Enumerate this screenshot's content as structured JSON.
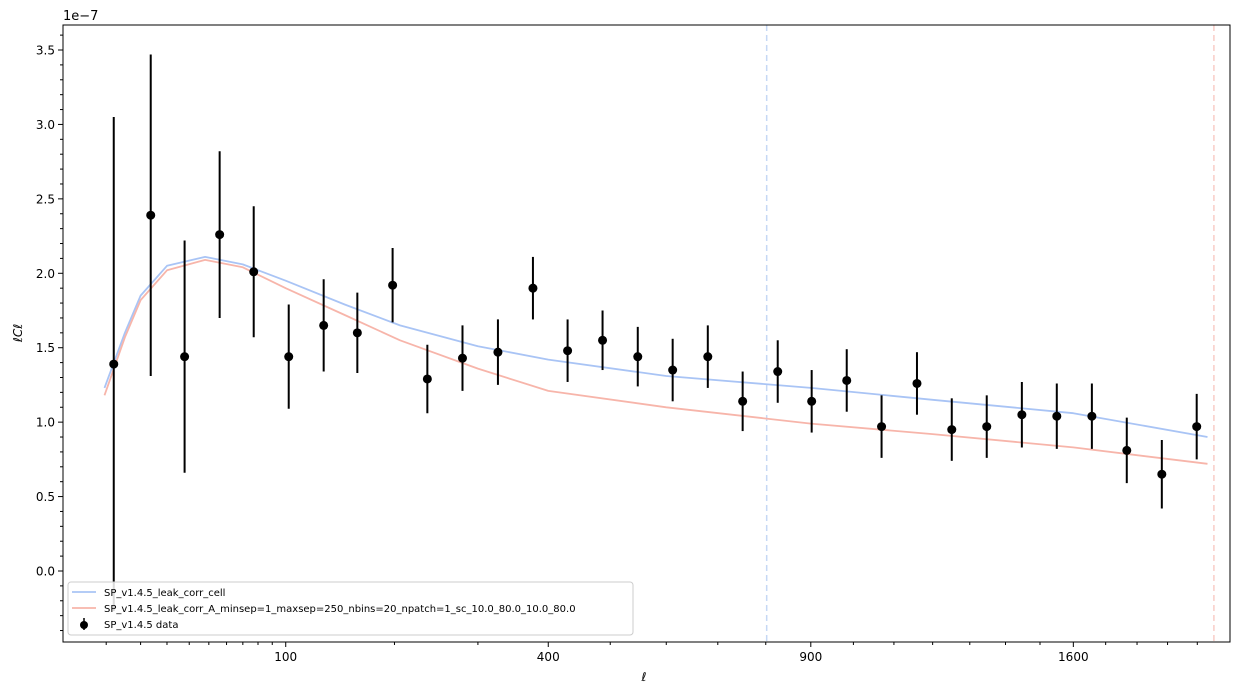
{
  "chart_data": {
    "type": "scatter",
    "title": "",
    "xlabel": "ℓ",
    "ylabel": "ℓCℓ",
    "x_scale": "sqrt",
    "y_offset_text": "1e−7",
    "y_multiplier": 1e-07,
    "xlim": [
      2.3,
      2113
    ],
    "ylim": [
      -0.477,
      3.668
    ],
    "x_ticks": [
      100,
      400,
      900,
      1600
    ],
    "x_tick_labels": [
      "100",
      "400",
      "900",
      "1600"
    ],
    "x_minor_ticks": [
      10,
      20,
      30,
      40,
      50,
      60,
      70,
      80,
      90,
      200,
      300,
      500,
      600,
      700,
      800,
      1000,
      1100,
      1200,
      1300,
      1400,
      1500,
      1700,
      1800,
      1900,
      2000
    ],
    "y_ticks": [
      0.0,
      0.5,
      1.0,
      1.5,
      2.0,
      2.5,
      3.0,
      3.5
    ],
    "y_tick_labels": [
      "0.0",
      "0.5",
      "1.0",
      "1.5",
      "2.0",
      "2.5",
      "3.0",
      "3.5"
    ],
    "vlines": [
      {
        "x": 802,
        "color": "#c5d8f5"
      },
      {
        "x": 2057,
        "color": "#f9cdc7"
      }
    ],
    "legend_position": "lower-left",
    "series": [
      {
        "name": "SP_v1.4.5_leak_corr_cell",
        "kind": "line",
        "color": "#a9c4f5",
        "x": [
          9.6,
          15,
          20,
          30,
          48,
          70,
          100,
          150,
          206,
          300,
          400,
          600,
          900,
          1200,
          1600,
          2035
        ],
        "y": [
          1.23,
          1.6,
          1.85,
          2.05,
          2.11,
          2.06,
          1.95,
          1.79,
          1.65,
          1.51,
          1.42,
          1.31,
          1.23,
          1.15,
          1.06,
          0.9
        ]
      },
      {
        "name": "SP_v1.4.5_leak_corr_A_minsep=1_maxsep=250_nbins=20_npatch=1_sc_10.0_80.0_10.0_80.0",
        "kind": "line",
        "color": "#f7b5aa",
        "x": [
          9.6,
          15,
          20,
          30,
          48,
          70,
          100,
          150,
          206,
          300,
          400,
          600,
          900,
          1200,
          1600,
          2035
        ],
        "y": [
          1.18,
          1.57,
          1.82,
          2.02,
          2.09,
          2.04,
          1.9,
          1.72,
          1.55,
          1.36,
          1.21,
          1.1,
          0.99,
          0.92,
          0.83,
          0.72
        ]
      },
      {
        "name": "SP_v1.4.5 data",
        "kind": "errorbar",
        "color": "#000000",
        "x": [
          11.9,
          23.6,
          37.8,
          56.0,
          77.1,
          102.3,
          131,
          162,
          198,
          237,
          280,
          327,
          377,
          430,
          487,
          548,
          612,
          680,
          751,
          826,
          902,
          984,
          1069,
          1159,
          1251,
          1347,
          1447,
          1550,
          1657,
          1767,
          1881,
          1998
        ],
        "y": [
          1.39,
          2.39,
          1.44,
          2.26,
          2.01,
          1.44,
          1.65,
          1.6,
          1.92,
          1.29,
          1.43,
          1.47,
          1.9,
          1.48,
          1.55,
          1.44,
          1.35,
          1.44,
          1.14,
          1.34,
          1.14,
          1.28,
          0.97,
          1.26,
          0.95,
          0.97,
          1.05,
          1.04,
          1.04,
          0.81,
          0.65,
          0.97
        ],
        "yerr": [
          1.66,
          1.08,
          0.78,
          0.56,
          0.44,
          0.35,
          0.31,
          0.27,
          0.25,
          0.23,
          0.22,
          0.22,
          0.21,
          0.21,
          0.2,
          0.2,
          0.21,
          0.21,
          0.2,
          0.21,
          0.21,
          0.21,
          0.21,
          0.21,
          0.21,
          0.21,
          0.22,
          0.22,
          0.22,
          0.22,
          0.23,
          0.22
        ]
      }
    ]
  }
}
